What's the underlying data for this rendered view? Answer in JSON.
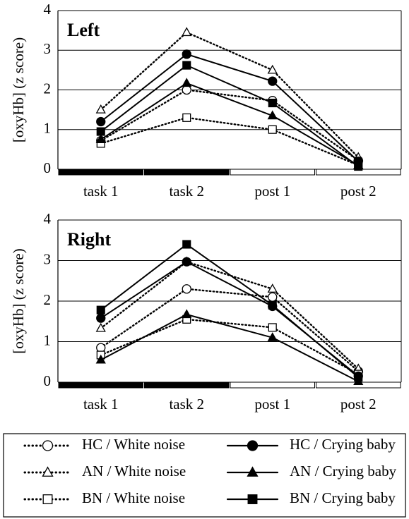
{
  "chart_data": [
    {
      "type": "line",
      "title": "Left",
      "ylabel": "[oxyHb] (z score)",
      "categories": [
        "task 1",
        "task 2",
        "post 1",
        "post 2"
      ],
      "ylim": [
        0,
        4
      ],
      "yticks": [
        0,
        1,
        2,
        3,
        4
      ],
      "grid": true,
      "series": [
        {
          "name": "HC / White noise",
          "color": "#000000",
          "marker": "circle",
          "fill": "white",
          "linestyle": "dotted",
          "values": [
            0.72,
            2.0,
            1.73,
            0.22
          ]
        },
        {
          "name": "AN / White noise",
          "color": "#000000",
          "marker": "triangle",
          "fill": "white",
          "linestyle": "dotted",
          "values": [
            1.5,
            3.45,
            2.5,
            0.3
          ]
        },
        {
          "name": "BN / White noise",
          "color": "#000000",
          "marker": "square",
          "fill": "white",
          "linestyle": "dotted",
          "values": [
            0.65,
            1.3,
            1.0,
            0.1
          ]
        },
        {
          "name": "HC / Crying baby",
          "color": "#000000",
          "marker": "circle",
          "fill": "black",
          "linestyle": "solid",
          "values": [
            1.2,
            2.9,
            2.22,
            0.2
          ]
        },
        {
          "name": "AN / Crying baby",
          "color": "#000000",
          "marker": "triangle",
          "fill": "black",
          "linestyle": "solid",
          "values": [
            0.75,
            2.17,
            1.35,
            0.1
          ]
        },
        {
          "name": "BN / Crying baby",
          "color": "#000000",
          "marker": "square",
          "fill": "black",
          "linestyle": "solid",
          "values": [
            0.95,
            2.62,
            1.67,
            0.07
          ]
        }
      ]
    },
    {
      "type": "line",
      "title": "Right",
      "ylabel": "[oxyHb] (z score)",
      "categories": [
        "task 1",
        "task 2",
        "post 1",
        "post 2"
      ],
      "ylim": [
        0,
        4
      ],
      "yticks": [
        0,
        1,
        2,
        3,
        4
      ],
      "grid": true,
      "series": [
        {
          "values": [
            0.85,
            2.3,
            2.1,
            0.27
          ]
        },
        {
          "values": [
            1.33,
            2.97,
            2.3,
            0.33
          ]
        },
        {
          "values": [
            0.67,
            1.55,
            1.35,
            0.2
          ]
        },
        {
          "values": [
            1.58,
            2.97,
            1.87,
            0.15
          ]
        },
        {
          "values": [
            0.55,
            1.67,
            1.1,
            0.02
          ]
        },
        {
          "values": [
            1.78,
            3.4,
            1.9,
            0.12
          ]
        }
      ]
    }
  ]
}
